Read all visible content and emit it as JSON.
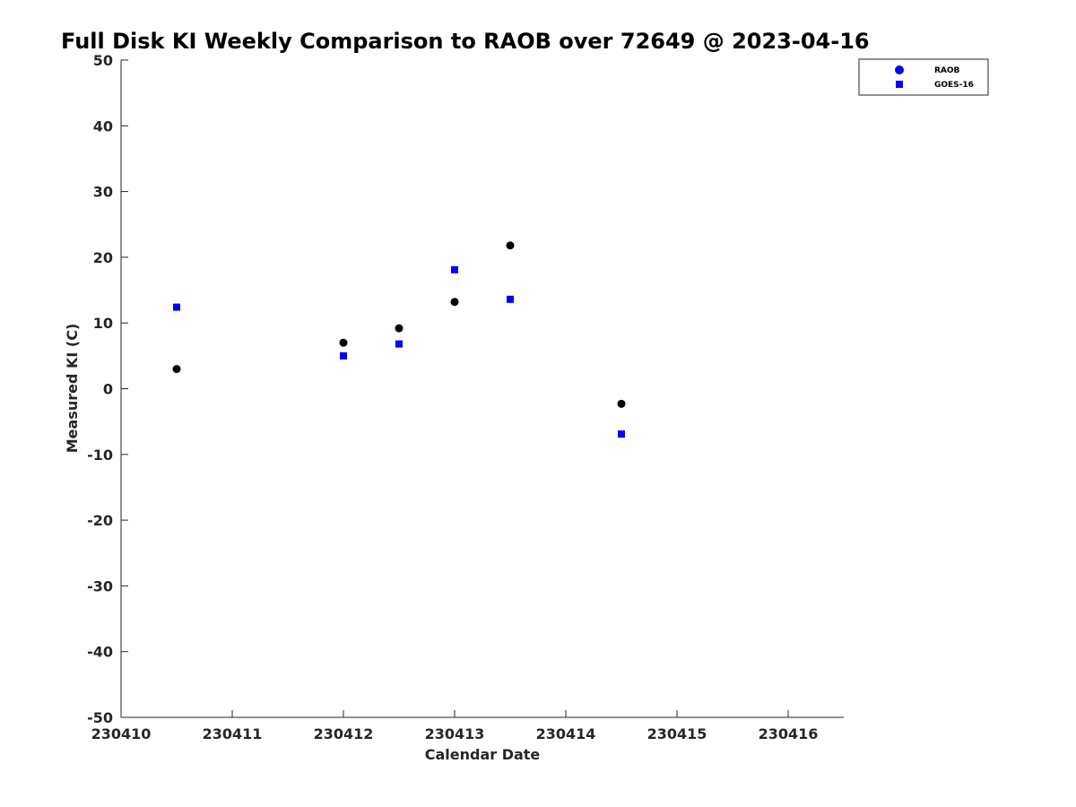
{
  "chart_data": {
    "type": "scatter",
    "title": "Full Disk KI Weekly Comparison to RAOB over 72649 @ 2023-04-16",
    "xlabel": "Calendar Date",
    "ylabel": "Measured KI (C)",
    "xlim": [
      0,
      6.5
    ],
    "ylim": [
      -50,
      50
    ],
    "x_ticks": [
      0,
      1,
      2,
      3,
      4,
      5,
      6
    ],
    "x_tick_labels": [
      "230410",
      "230411",
      "230412",
      "230413",
      "230414",
      "230415",
      "230416"
    ],
    "y_ticks": [
      -50,
      -40,
      -30,
      -20,
      -10,
      0,
      10,
      20,
      30,
      40,
      50
    ],
    "y_tick_labels": [
      "-50",
      "-40",
      "-30",
      "-20",
      "-10",
      "0",
      "10",
      "20",
      "30",
      "40",
      "50"
    ],
    "grid": false,
    "legend_position": "top-right",
    "series": [
      {
        "name": "RAOB",
        "marker": "circle",
        "color": "#000000",
        "legend_color": "#0000ff",
        "x": [
          0.5,
          2.0,
          2.5,
          3.0,
          3.5,
          4.5
        ],
        "y": [
          3.0,
          7.0,
          9.2,
          13.2,
          21.8,
          -2.3
        ]
      },
      {
        "name": "GOES-16",
        "marker": "square",
        "color": "#0000ff",
        "legend_color": "#0000ff",
        "x": [
          0.5,
          2.0,
          2.5,
          3.0,
          3.5,
          4.5
        ],
        "y": [
          12.4,
          5.0,
          6.8,
          18.1,
          13.6,
          -6.9
        ]
      }
    ]
  }
}
